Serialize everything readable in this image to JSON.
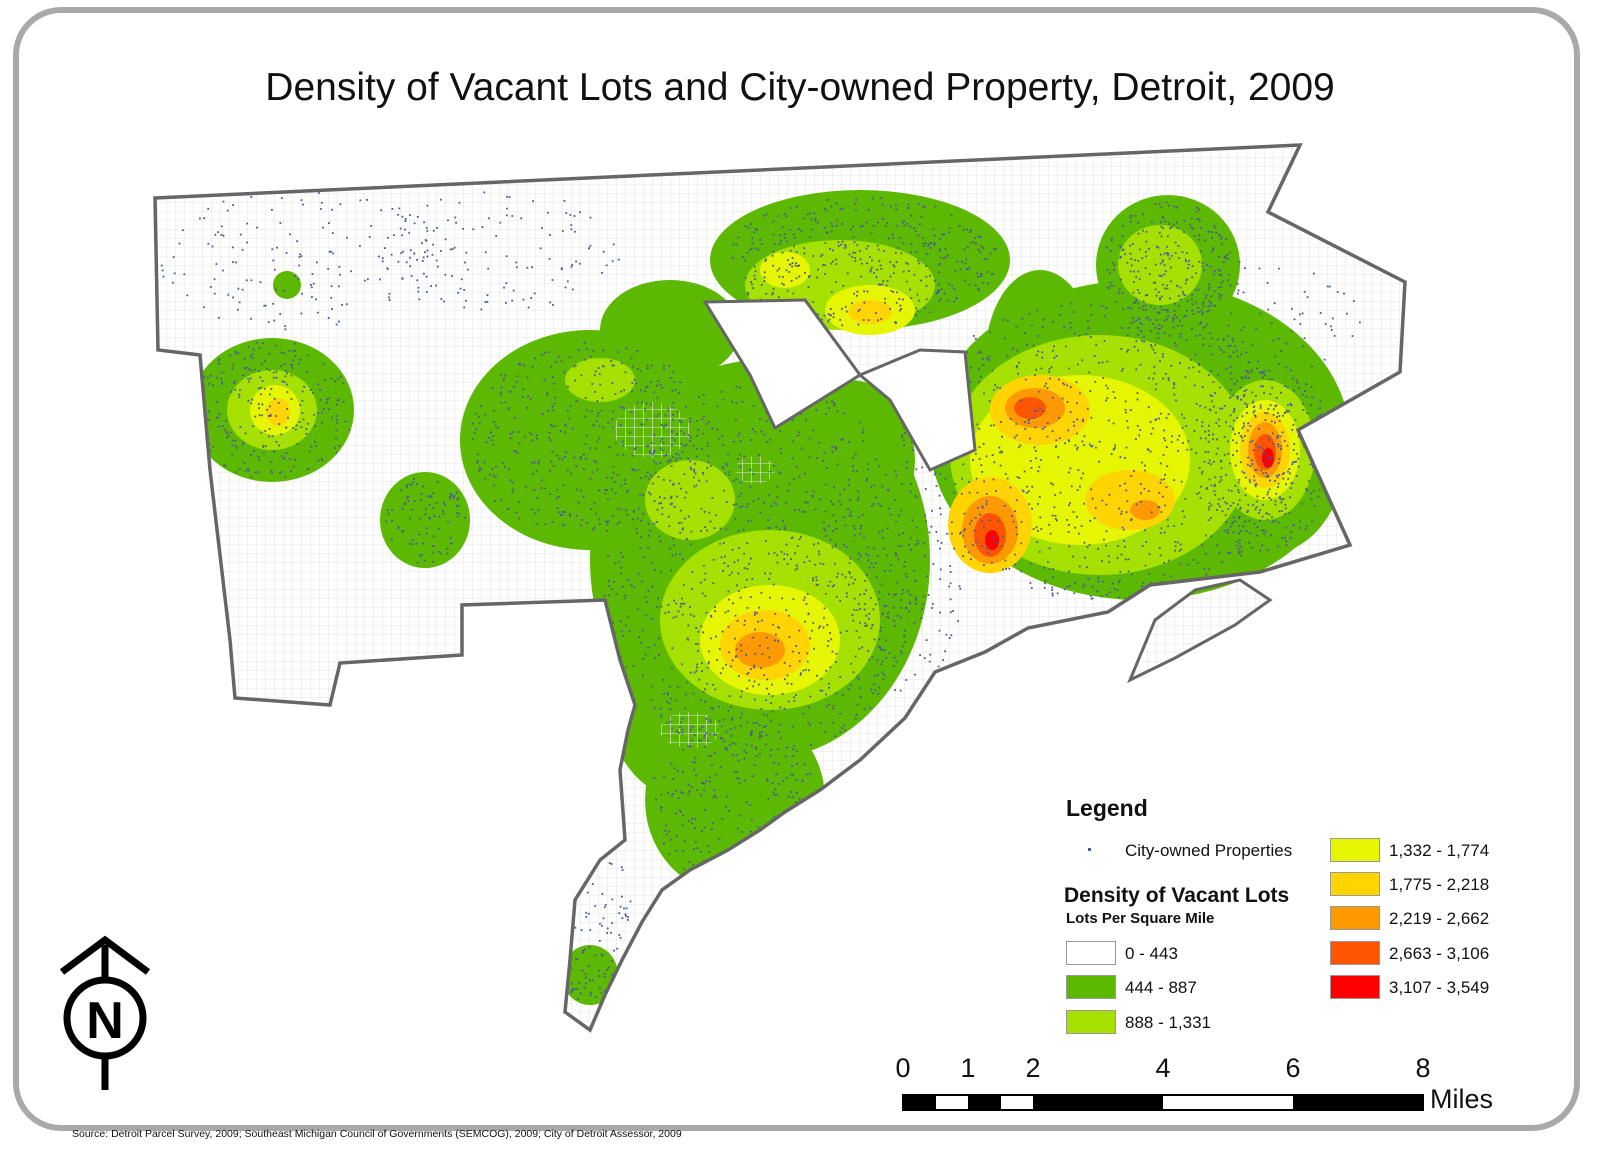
{
  "title": "Density of Vacant Lots and City-owned Property, Detroit, 2009",
  "legend": {
    "heading": "Legend",
    "point_label": "City-owned Properties",
    "point_color": "#4a5a9a",
    "density_title": "Density of Vacant Lots",
    "density_subtitle": "Lots Per Square Mile",
    "classes": [
      {
        "label": "0 - 443",
        "color": "#ffffff"
      },
      {
        "label": "444 - 887",
        "color": "#5cb800"
      },
      {
        "label": "888 - 1,331",
        "color": "#a6e000"
      },
      {
        "label": "1,332 - 1,774",
        "color": "#e6f500"
      },
      {
        "label": "1,775 - 2,218",
        "color": "#ffd400"
      },
      {
        "label": "2,219 - 2,662",
        "color": "#ff9900"
      },
      {
        "label": "2,663 - 3,106",
        "color": "#ff5500"
      },
      {
        "label": "3,107 - 3,549",
        "color": "#ff0000"
      }
    ]
  },
  "scale_bar": {
    "ticks": [
      "0",
      "1",
      "2",
      "4",
      "6",
      "8"
    ],
    "unit": "Miles"
  },
  "north_arrow": {
    "letter": "N"
  },
  "source": "Source: Detroit Parcel Survey, 2009; Southeast Michigan Council of Governments (SEMCOG), 2009; City of Detroit Assessor, 2009",
  "colors": {
    "boundary": "#666666",
    "frame": "#a9a9a9"
  }
}
